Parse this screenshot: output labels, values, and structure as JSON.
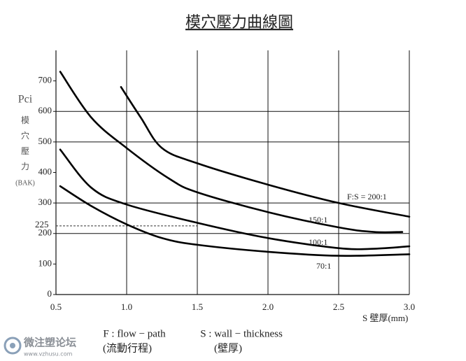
{
  "chart_data": {
    "type": "line",
    "title": "模穴壓力曲線圖",
    "y_label": [
      "Pci",
      "模",
      "穴",
      "壓",
      "力",
      "(BAK)"
    ],
    "x_label": "S 壁厚(mm)",
    "annotations": [
      "F : flow − path",
      "(流動行程)",
      "S : wall − thickness",
      "(壁厚)"
    ],
    "watermark": [
      "微注塑论坛",
      "www.vzhusu.com"
    ],
    "xlim": [
      0.5,
      3.0
    ],
    "xticks": [
      0.5,
      {
        "value": 1,
        "label": "1.0"
      },
      1.5,
      {
        "value": 2,
        "label": "2.0"
      },
      2.5,
      {
        "value": 3,
        "label": "3.0"
      }
    ],
    "ylim": [
      0,
      800
    ],
    "yticks": [
      0,
      100,
      200,
      300,
      400,
      500,
      600,
      700
    ],
    "ygrid": [
      200,
      300,
      500,
      600
    ],
    "reference_line": {
      "value": 225,
      "label": "225",
      "x_end": 1.5
    },
    "series": [
      {
        "name": "F:S = 200:1",
        "color": "#000000",
        "x": [
          0.96,
          1.1,
          1.25,
          1.5,
          2.0,
          2.5,
          3.0
        ],
        "values": [
          680,
          580,
          480,
          430,
          360,
          300,
          255
        ]
      },
      {
        "name": "150:1",
        "color": "#000000",
        "x": [
          0.53,
          0.75,
          1.0,
          1.3,
          1.5,
          2.0,
          2.5,
          2.75,
          2.95
        ],
        "values": [
          730,
          580,
          480,
          380,
          335,
          270,
          220,
          205,
          205
        ]
      },
      {
        "name": "100:1",
        "color": "#000000",
        "x": [
          0.53,
          0.75,
          1.0,
          1.5,
          2.0,
          2.5,
          2.75,
          3.0
        ],
        "values": [
          475,
          350,
          295,
          235,
          185,
          152,
          150,
          158
        ]
      },
      {
        "name": "70:1",
        "color": "#000000",
        "x": [
          0.53,
          0.75,
          1.0,
          1.25,
          1.5,
          2.0,
          2.5,
          3.0
        ],
        "values": [
          355,
          290,
          230,
          185,
          163,
          140,
          127,
          132
        ]
      }
    ]
  }
}
